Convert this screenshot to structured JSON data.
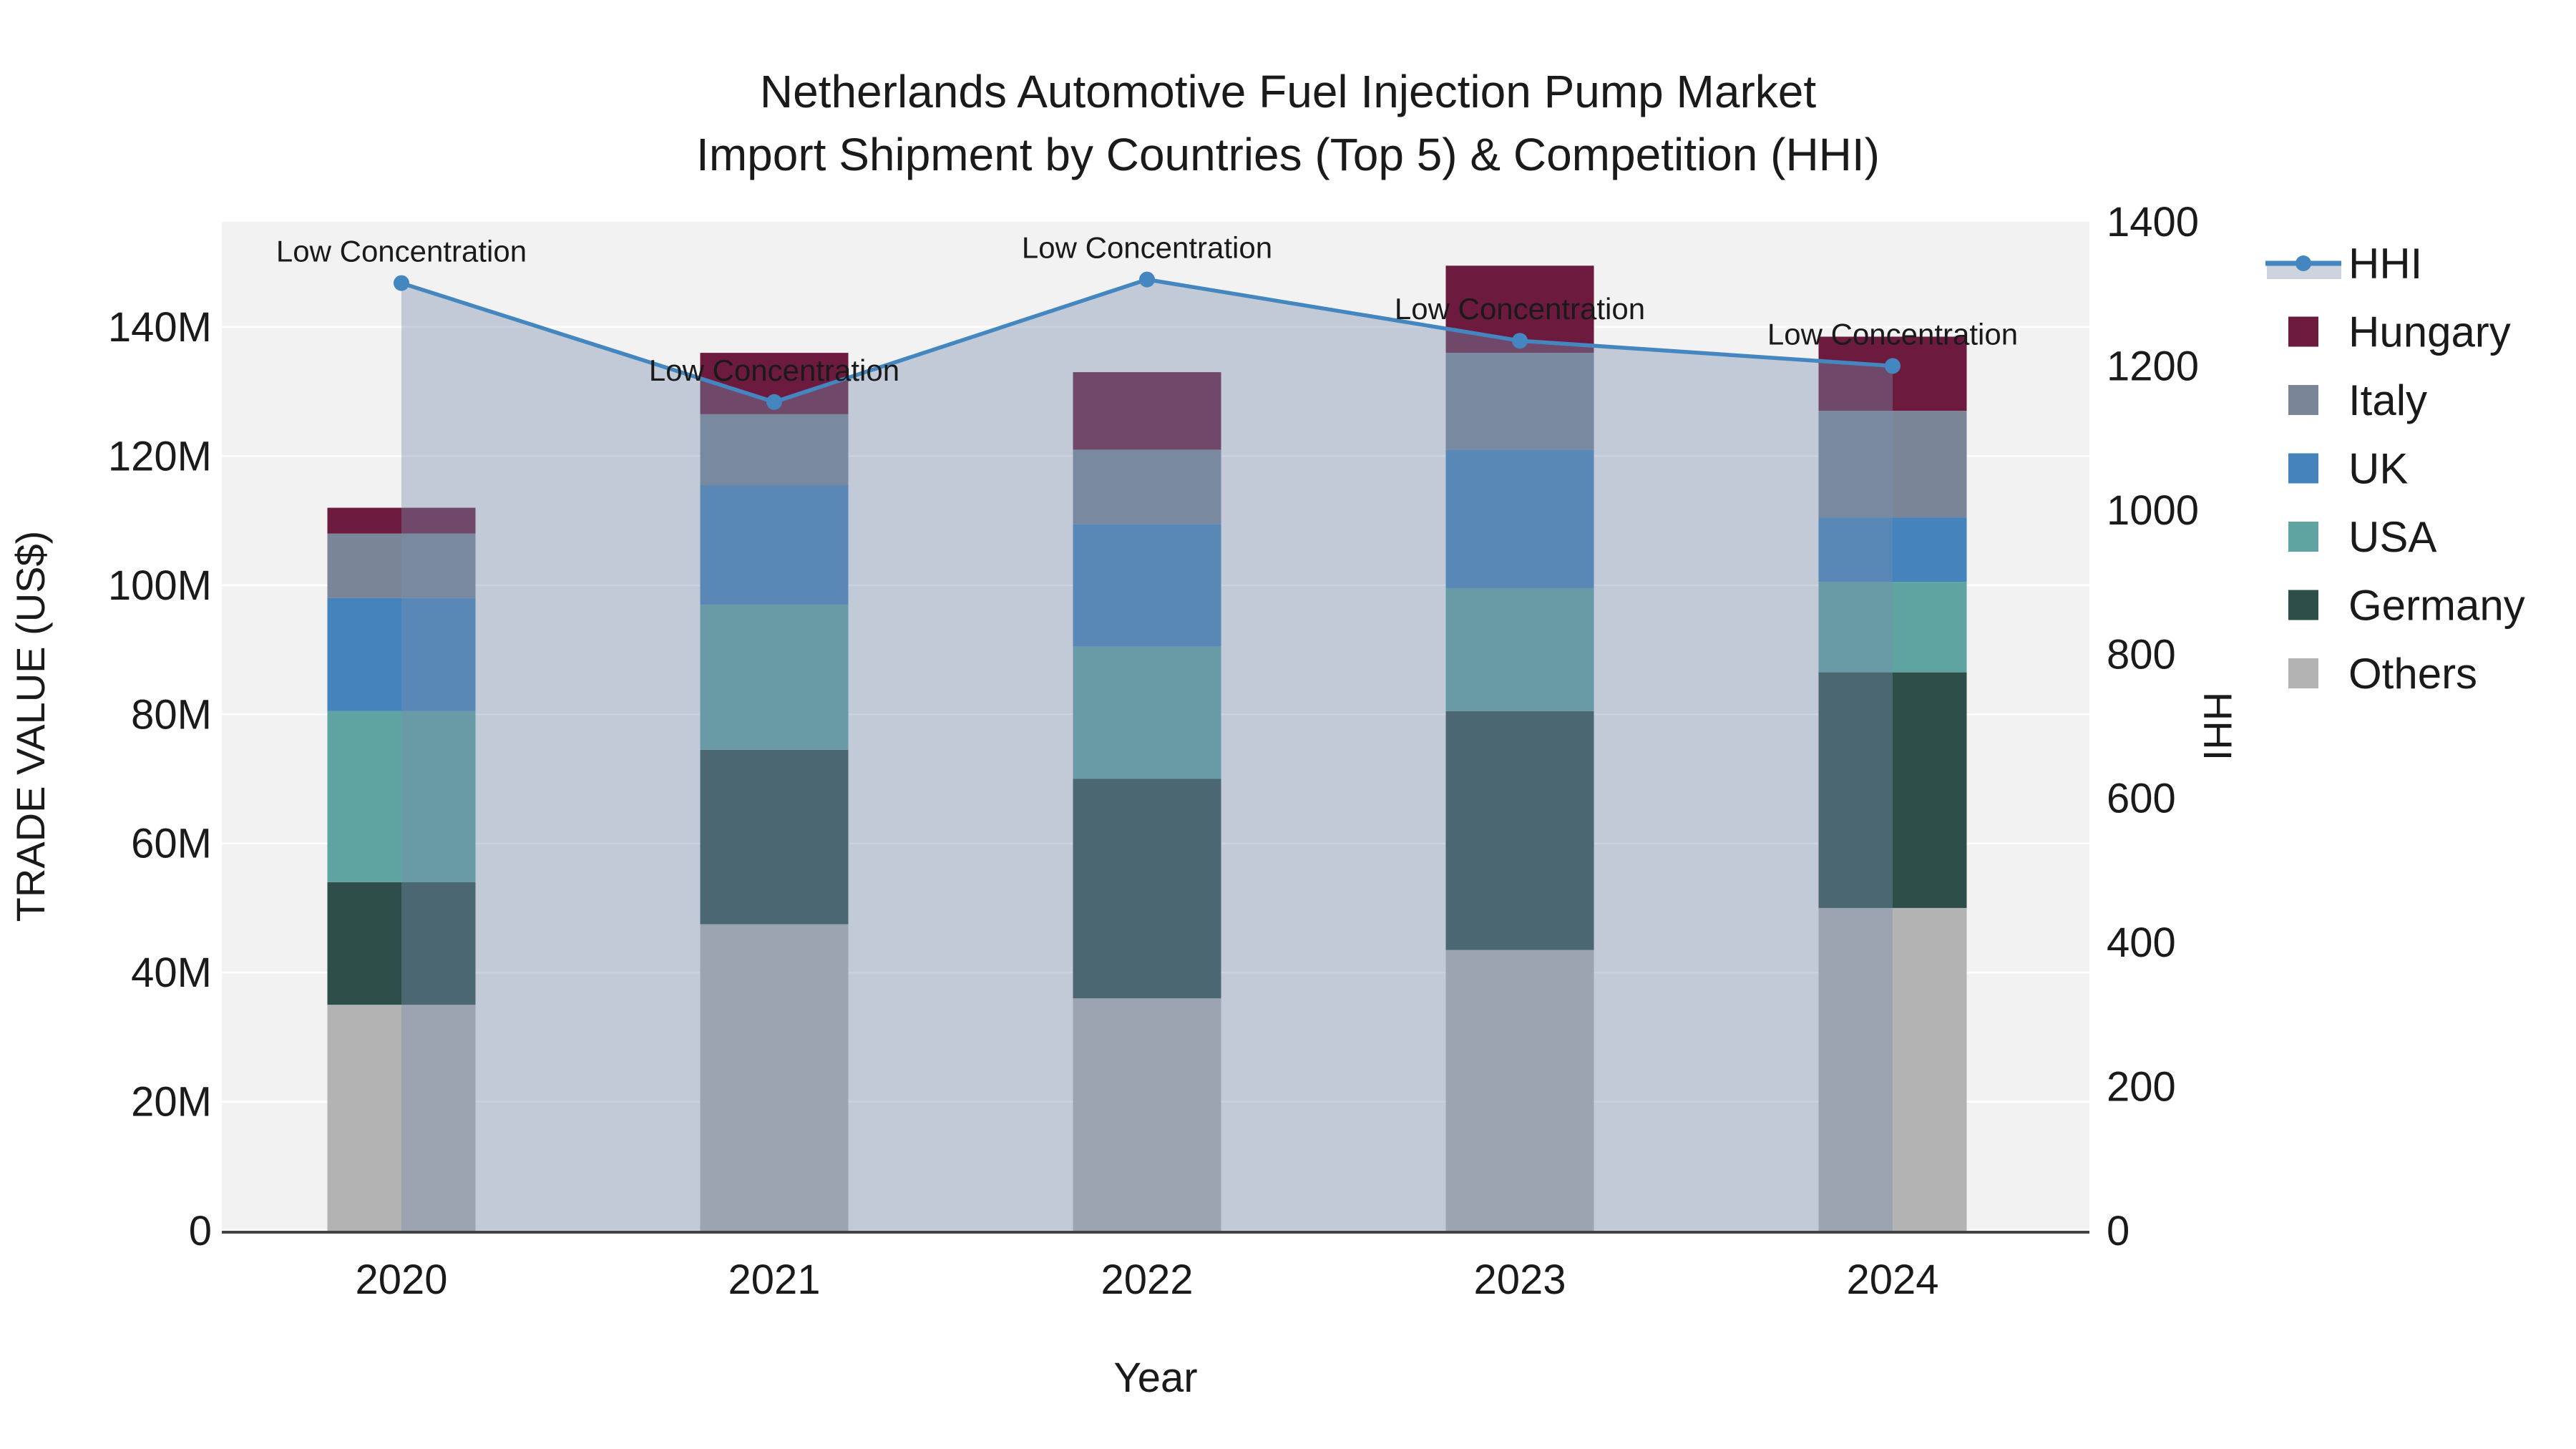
{
  "chart_data": {
    "type": "combo-stacked-bar-line",
    "title_lines": [
      "Netherlands Automotive Fuel Injection Pump Market",
      "Import Shipment by Countries (Top 5) & Competition (HHI)"
    ],
    "categories": [
      "2020",
      "2021",
      "2022",
      "2023",
      "2024"
    ],
    "xlabel": "Year",
    "y_left": {
      "label": "TRADE VALUE (US$)",
      "unit": "million US$",
      "ticks": [
        {
          "v": 0,
          "label": "0"
        },
        {
          "v": 20,
          "label": "20M"
        },
        {
          "v": 40,
          "label": "40M"
        },
        {
          "v": 60,
          "label": "60M"
        },
        {
          "v": 80,
          "label": "80M"
        },
        {
          "v": 100,
          "label": "100M"
        },
        {
          "v": 120,
          "label": "120M"
        },
        {
          "v": 140,
          "label": "140M"
        }
      ],
      "max": 158.5
    },
    "y_right": {
      "label": "HHI",
      "ticks": [
        {
          "v": 0,
          "label": "0"
        },
        {
          "v": 200,
          "label": "200"
        },
        {
          "v": 400,
          "label": "400"
        },
        {
          "v": 600,
          "label": "600"
        },
        {
          "v": 800,
          "label": "800"
        },
        {
          "v": 1000,
          "label": "1000"
        },
        {
          "v": 1200,
          "label": "1200"
        },
        {
          "v": 1400,
          "label": "1400"
        }
      ],
      "max": 1420
    },
    "series": [
      {
        "name": "Others",
        "color": "#b3b3b3",
        "values": [
          35.0,
          47.5,
          36.0,
          43.5,
          50.0
        ]
      },
      {
        "name": "Germany",
        "color": "#2e4e4a",
        "values": [
          19.0,
          27.0,
          34.0,
          37.0,
          36.5
        ]
      },
      {
        "name": "USA",
        "color": "#60a4a2",
        "values": [
          26.5,
          22.5,
          20.5,
          19.0,
          14.0
        ]
      },
      {
        "name": "UK",
        "color": "#4583bd",
        "values": [
          17.5,
          18.5,
          19.0,
          21.5,
          10.0
        ]
      },
      {
        "name": "Italy",
        "color": "#7a8698",
        "values": [
          10.0,
          11.0,
          11.5,
          15.0,
          16.5
        ]
      },
      {
        "name": "Hungary",
        "color": "#6c1b3e",
        "values": [
          4.0,
          9.5,
          12.0,
          13.5,
          11.5
        ]
      }
    ],
    "bar_totals": [
      112.0,
      136.0,
      133.0,
      149.5,
      138.5
    ],
    "line": {
      "name": "HHI",
      "color": "#4486bf",
      "fill": "rgba(120,142,172,0.40)",
      "values": [
        1315,
        1150,
        1320,
        1235,
        1200
      ]
    },
    "annotations": [
      "Low Concentration",
      "Low Concentration",
      "Low Concentration",
      "Low Concentration",
      "Low Concentration"
    ],
    "legend_position": "right"
  }
}
